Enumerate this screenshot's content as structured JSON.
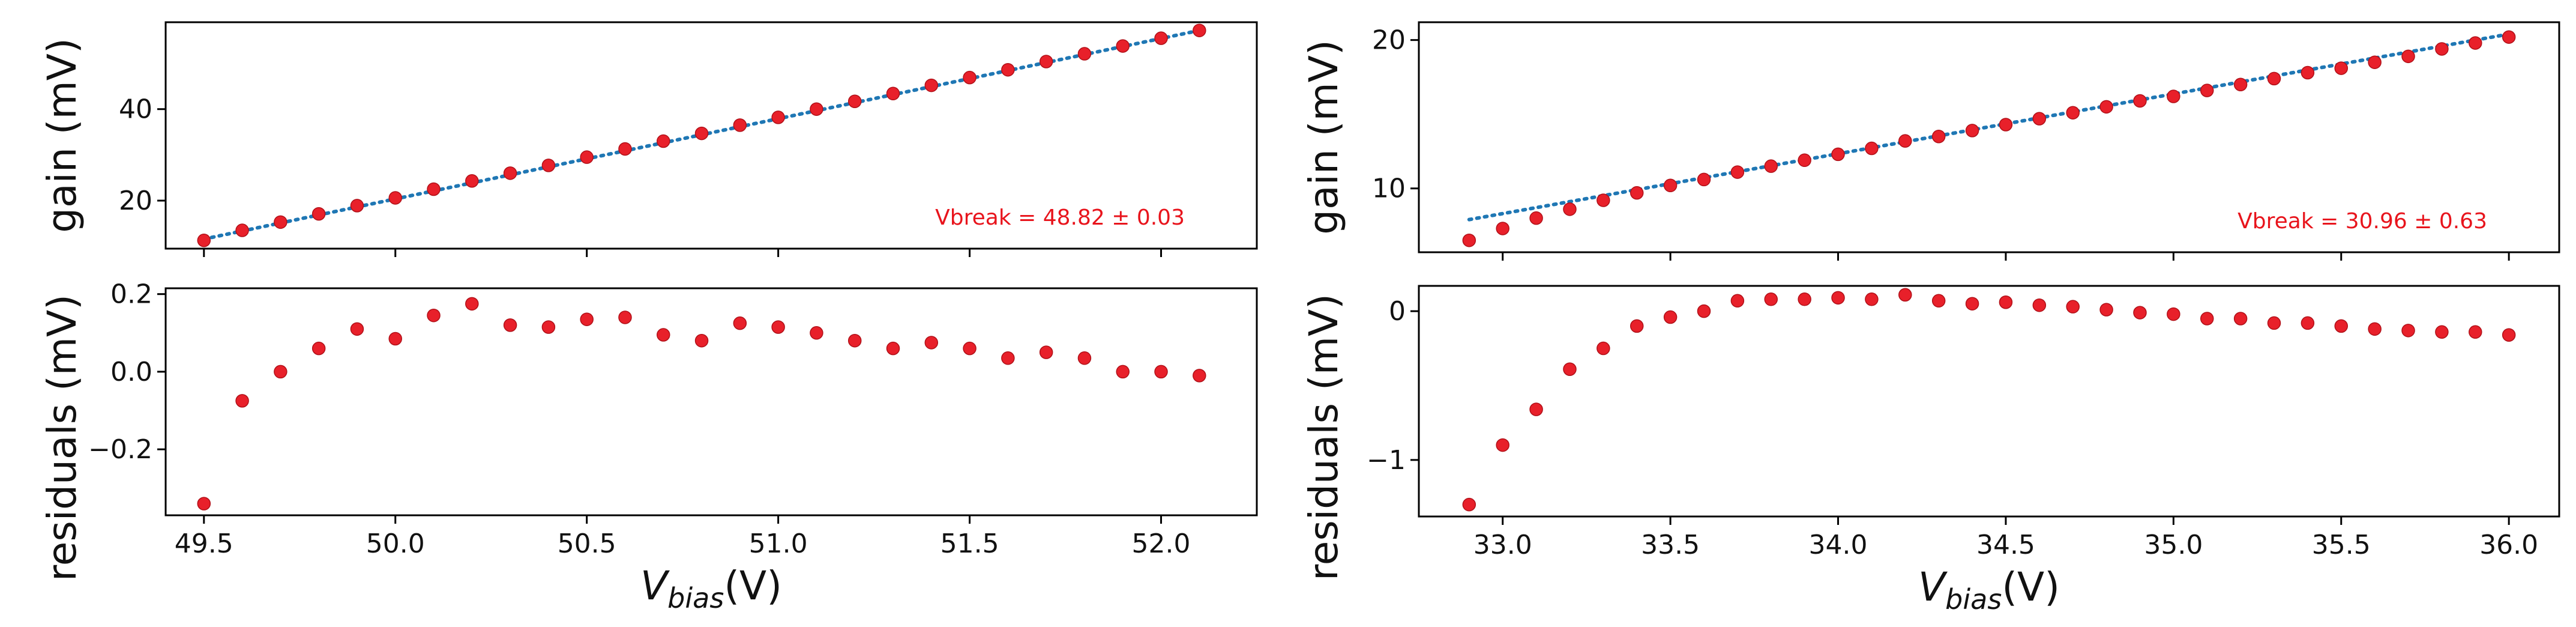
{
  "chart_data": [
    {
      "type": "scatter",
      "panel": "gain-left",
      "ylabel": "gain (mV)",
      "xlim": [
        49.4,
        52.25
      ],
      "ylim": [
        9.5,
        59
      ],
      "xticks": [
        49.5,
        50.0,
        50.5,
        51.0,
        51.5,
        52.0
      ],
      "yticks": [
        20,
        40
      ],
      "ytick_labels": [
        "20",
        "40"
      ],
      "show_xtick_labels": false,
      "annotation": "Vbreak = 48.82 ± 0.03",
      "annotation_position": "bottom-right",
      "fit": {
        "x": [
          49.5,
          52.1
        ],
        "y": [
          11.6,
          57.2
        ]
      },
      "series": [
        {
          "name": "gain",
          "x": [
            49.5,
            49.6,
            49.7,
            49.8,
            49.9,
            50.0,
            50.1,
            50.2,
            50.3,
            50.4,
            50.5,
            50.6,
            50.7,
            50.8,
            50.9,
            51.0,
            51.1,
            51.2,
            51.3,
            51.4,
            51.5,
            51.6,
            51.7,
            51.8,
            51.9,
            52.0,
            52.1
          ],
          "y": [
            11.3,
            13.5,
            15.3,
            17.1,
            18.9,
            20.6,
            22.5,
            24.3,
            26.0,
            27.7,
            29.5,
            31.3,
            33.0,
            34.7,
            36.5,
            38.2,
            40.0,
            41.7,
            43.4,
            45.2,
            46.9,
            48.6,
            50.4,
            52.1,
            53.8,
            55.5,
            57.2
          ]
        }
      ]
    },
    {
      "type": "scatter",
      "panel": "residuals-left",
      "ylabel": "residuals (mV)",
      "xlabel_main": "V",
      "xlabel_sub": "bias",
      "xlabel_unit": "(V)",
      "xlim": [
        49.4,
        52.25
      ],
      "ylim": [
        -0.37,
        0.215
      ],
      "xticks": [
        49.5,
        50.0,
        50.5,
        51.0,
        51.5,
        52.0
      ],
      "xtick_labels": [
        "49.5",
        "50.0",
        "50.5",
        "51.0",
        "51.5",
        "52.0"
      ],
      "yticks": [
        -0.2,
        0.0,
        0.2
      ],
      "ytick_labels": [
        "−0.2",
        "0.0",
        "0.2"
      ],
      "series": [
        {
          "name": "residuals",
          "x": [
            49.5,
            49.6,
            49.7,
            49.8,
            49.9,
            50.0,
            50.1,
            50.2,
            50.3,
            50.4,
            50.5,
            50.6,
            50.7,
            50.8,
            50.9,
            51.0,
            51.1,
            51.2,
            51.3,
            51.4,
            51.5,
            51.6,
            51.7,
            51.8,
            51.9,
            52.0,
            52.1
          ],
          "y": [
            -0.34,
            -0.075,
            0.0,
            0.06,
            0.11,
            0.085,
            0.145,
            0.175,
            0.12,
            0.115,
            0.135,
            0.14,
            0.095,
            0.08,
            0.125,
            0.115,
            0.1,
            0.08,
            0.06,
            0.075,
            0.06,
            0.035,
            0.05,
            0.035,
            0.0,
            0.0,
            -0.01
          ]
        }
      ]
    },
    {
      "type": "scatter",
      "panel": "gain-right",
      "ylabel": "gain (mV)",
      "xlim": [
        32.75,
        36.15
      ],
      "ylim": [
        5.7,
        21.2
      ],
      "xticks": [
        33.0,
        33.5,
        34.0,
        34.5,
        35.0,
        35.5,
        36.0
      ],
      "yticks": [
        10,
        20
      ],
      "ytick_labels": [
        "10",
        "20"
      ],
      "show_xtick_labels": false,
      "annotation": "Vbreak = 30.96 ± 0.63",
      "annotation_position": "bottom-right",
      "fit": {
        "x": [
          32.9,
          36.0
        ],
        "y": [
          7.9,
          20.4
        ]
      },
      "series": [
        {
          "name": "gain",
          "x": [
            32.9,
            33.0,
            33.1,
            33.2,
            33.3,
            33.4,
            33.5,
            33.6,
            33.7,
            33.8,
            33.9,
            34.0,
            34.1,
            34.2,
            34.3,
            34.4,
            34.5,
            34.6,
            34.7,
            34.8,
            34.9,
            35.0,
            35.1,
            35.2,
            35.3,
            35.4,
            35.5,
            35.6,
            35.7,
            35.8,
            35.9,
            36.0
          ],
          "y": [
            6.5,
            7.3,
            8.0,
            8.6,
            9.2,
            9.7,
            10.2,
            10.6,
            11.1,
            11.5,
            11.9,
            12.3,
            12.7,
            13.2,
            13.5,
            13.9,
            14.3,
            14.7,
            15.1,
            15.5,
            15.9,
            16.2,
            16.6,
            17.0,
            17.4,
            17.8,
            18.1,
            18.5,
            18.9,
            19.4,
            19.8,
            20.2
          ]
        }
      ]
    },
    {
      "type": "scatter",
      "panel": "residuals-right",
      "ylabel": "residuals (mV)",
      "xlabel_main": "V",
      "xlabel_sub": "bias",
      "xlabel_unit": "(V)",
      "xlim": [
        32.75,
        36.15
      ],
      "ylim": [
        -1.38,
        0.17
      ],
      "xticks": [
        33.0,
        33.5,
        34.0,
        34.5,
        35.0,
        35.5,
        36.0
      ],
      "xtick_labels": [
        "33.0",
        "33.5",
        "34.0",
        "34.5",
        "35.0",
        "35.5",
        "36.0"
      ],
      "yticks": [
        -1,
        0
      ],
      "ytick_labels": [
        "−1",
        "0"
      ],
      "series": [
        {
          "name": "residuals",
          "x": [
            32.9,
            33.0,
            33.1,
            33.2,
            33.3,
            33.4,
            33.5,
            33.6,
            33.7,
            33.8,
            33.9,
            34.0,
            34.1,
            34.2,
            34.3,
            34.4,
            34.5,
            34.6,
            34.7,
            34.8,
            34.9,
            35.0,
            35.1,
            35.2,
            35.3,
            35.4,
            35.5,
            35.6,
            35.7,
            35.8,
            35.9,
            36.0
          ],
          "y": [
            -1.3,
            -0.9,
            -0.66,
            -0.39,
            -0.25,
            -0.1,
            -0.04,
            0.0,
            0.07,
            0.08,
            0.08,
            0.09,
            0.08,
            0.11,
            0.07,
            0.05,
            0.06,
            0.04,
            0.03,
            0.01,
            -0.01,
            -0.02,
            -0.05,
            -0.05,
            -0.08,
            -0.08,
            -0.1,
            -0.12,
            -0.13,
            -0.14,
            -0.14,
            -0.16
          ]
        }
      ]
    }
  ],
  "colors": {
    "points": "#e8202a",
    "fit": "#1f77b4",
    "annotation": "#e8141c"
  }
}
